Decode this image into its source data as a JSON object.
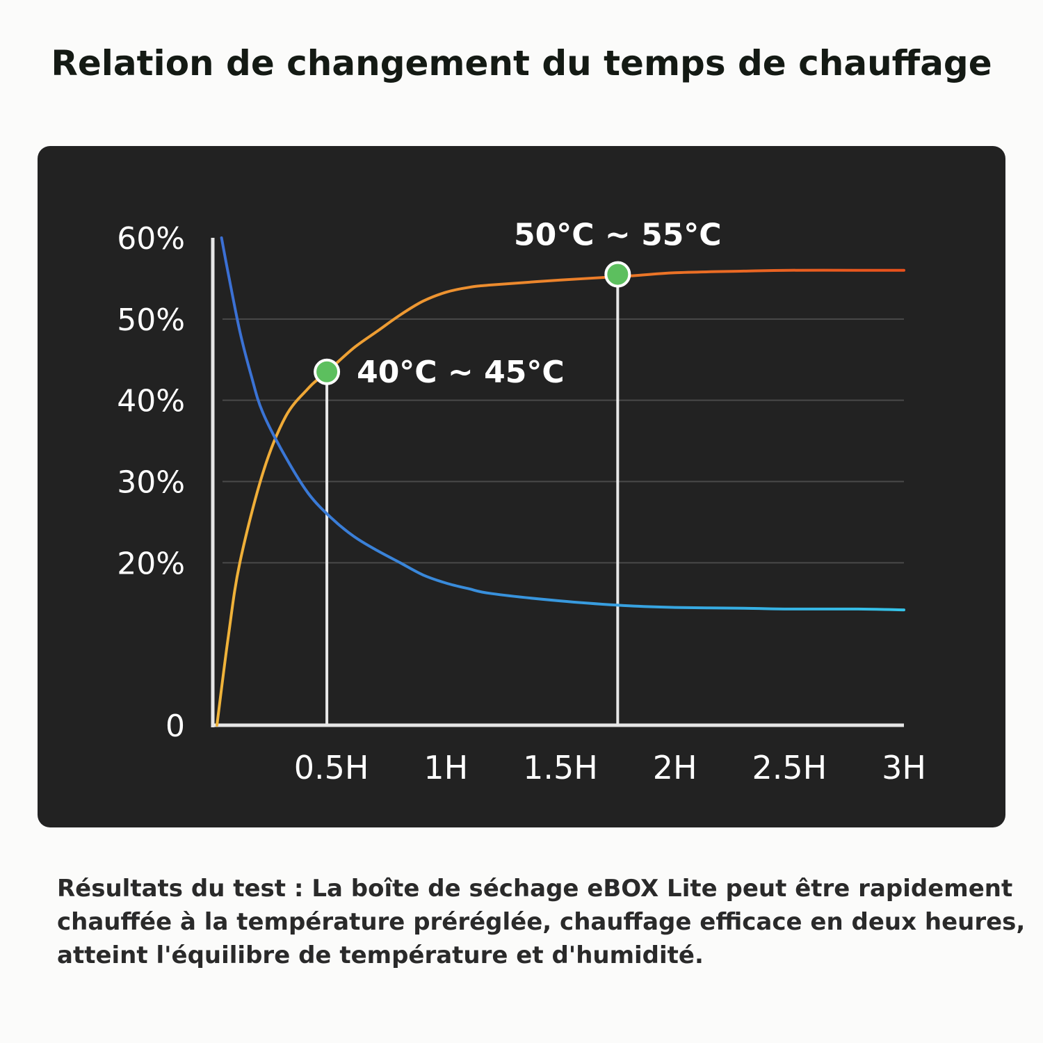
{
  "title": "Relation de changement du temps de chauffage",
  "description": "Résultats du test : La boîte de séchage eBOX Lite peut être rapidement chauffée à la température préréglée, chauffage efficace en deux heures, atteint l'équilibre de température et d'humidité.",
  "chart_data": {
    "type": "line",
    "title": "",
    "xlabel": "",
    "ylabel": "",
    "x_tick_labels": [
      "0.5H",
      "1H",
      "1.5H",
      "2H",
      "2.5H",
      "3H"
    ],
    "x_tick_values": [
      0.5,
      1,
      1.5,
      2,
      2.5,
      3
    ],
    "y_tick_labels": [
      "0",
      "20%",
      "30%",
      "40%",
      "50%",
      "60%"
    ],
    "y_tick_values": [
      0,
      20,
      30,
      40,
      50,
      60
    ],
    "xlim": [
      0,
      3
    ],
    "ylim": [
      0,
      60
    ],
    "grid": true,
    "series": [
      {
        "color": "#f0b43a",
        "color_end": "#e8501c",
        "x": [
          0,
          0.05,
          0.1,
          0.2,
          0.3,
          0.4,
          0.45,
          0.5,
          0.6,
          0.7,
          0.8,
          0.9,
          1.0,
          1.1,
          1.2,
          1.5,
          1.8,
          2.0,
          2.3,
          2.5,
          2.8,
          3.0
        ],
        "y": [
          0,
          11,
          20,
          31,
          38,
          41.5,
          42.8,
          44,
          46.5,
          48.5,
          50.5,
          52.2,
          53.3,
          53.9,
          54.2,
          54.8,
          55.3,
          55.7,
          55.9,
          56,
          56,
          56
        ]
      },
      {
        "color": "#3b6fd4",
        "color_end": "#35c3e8",
        "x": [
          0.02,
          0.05,
          0.1,
          0.15,
          0.2,
          0.3,
          0.4,
          0.5,
          0.6,
          0.7,
          0.8,
          0.9,
          1.0,
          1.1,
          1.2,
          1.5,
          1.8,
          2.0,
          2.3,
          2.5,
          2.8,
          3.0
        ],
        "y": [
          60,
          55.5,
          48.5,
          43,
          38.5,
          33,
          28.5,
          25.5,
          23.2,
          21.5,
          20,
          18.5,
          17.5,
          16.8,
          16.2,
          15.3,
          14.7,
          14.5,
          14.4,
          14.3,
          14.3,
          14.2
        ]
      }
    ],
    "annotations": [
      {
        "label": "40°C ~ 45°C",
        "x": 0.48,
        "y": 43.5,
        "marker_color": "#5cbf5e"
      },
      {
        "label": "50°C ~ 55°C",
        "x": 1.75,
        "y": 55.5,
        "marker_color": "#5cbf5e"
      }
    ]
  }
}
